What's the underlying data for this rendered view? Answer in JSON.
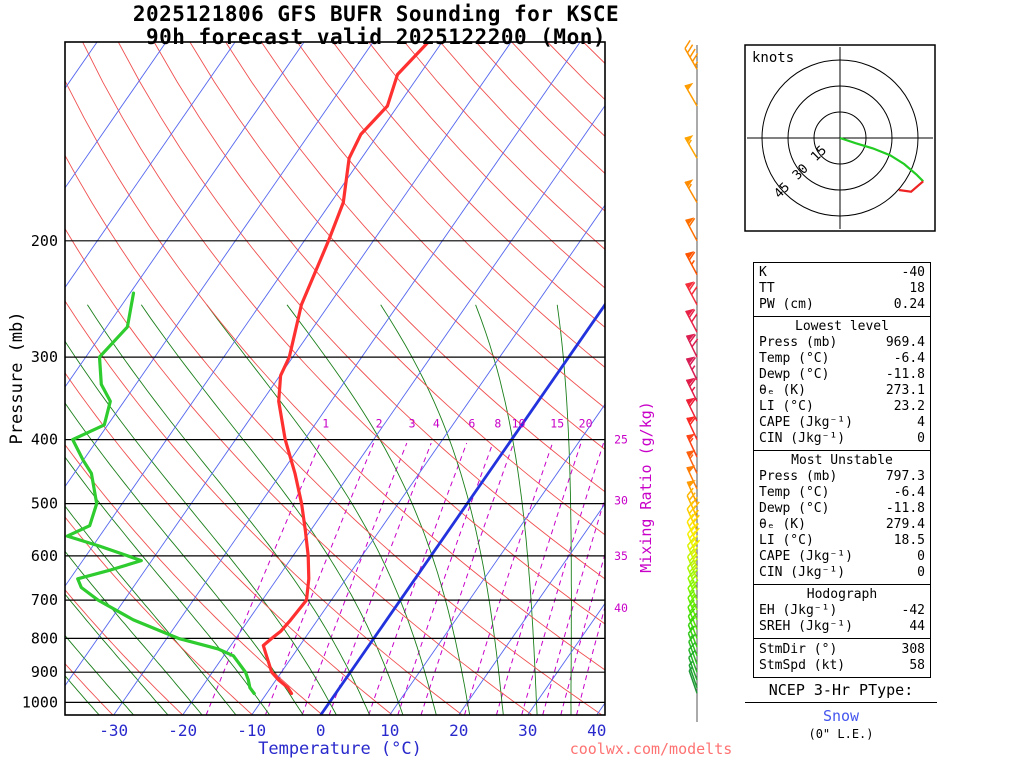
{
  "title": {
    "line1": "2025121806 GFS BUFR Sounding for KSCE",
    "line2": "90h forecast valid 2025122200 (Mon)"
  },
  "axes": {
    "pressure_label": "Pressure (mb)",
    "temp_label": "Temperature (°C)",
    "mixing_ratio_label": "Mixing Ratio (g/kg)",
    "pressure_ticks": [
      200,
      300,
      400,
      500,
      600,
      700,
      800,
      900,
      1000
    ],
    "temp_ticks": [
      -30,
      -20,
      -10,
      0,
      10,
      20,
      30,
      40
    ]
  },
  "watermark": "coolwx.com/modelts",
  "chart_data": {
    "type": "skewt_log_p_sounding",
    "station": "KSCE",
    "model_run": "2025121806 GFS BUFR",
    "forecast": "90h forecast valid 2025122200 (Mon)",
    "pressure_range": [
      100,
      1045
    ],
    "isotherms": {
      "min": -100,
      "max": 40,
      "step": 10,
      "freezing_highlight": 0
    },
    "dry_adiabats_theta_K": {
      "min": 240,
      "max": 490,
      "step": 10
    },
    "moist_adiabats_thetaw_C": {
      "min": -40,
      "max": 40,
      "step": 5
    },
    "mixing_ratio_values": [
      1,
      2,
      3,
      4,
      6,
      8,
      10,
      15,
      20,
      25,
      30,
      35,
      40
    ],
    "temperature_profile": [
      [
        969.4,
        -6.4
      ],
      [
        950,
        -7.5
      ],
      [
        925,
        -9.6
      ],
      [
        900,
        -11.4
      ],
      [
        850,
        -13.8
      ],
      [
        820,
        -15.3
      ],
      [
        800,
        -14.8
      ],
      [
        780,
        -14.2
      ],
      [
        750,
        -13.9
      ],
      [
        700,
        -13.6
      ],
      [
        650,
        -15.4
      ],
      [
        600,
        -17.8
      ],
      [
        550,
        -20.7
      ],
      [
        500,
        -24.0
      ],
      [
        450,
        -28.0
      ],
      [
        400,
        -32.8
      ],
      [
        350,
        -37.6
      ],
      [
        320,
        -39.9
      ],
      [
        300,
        -40.5
      ],
      [
        250,
        -44.0
      ],
      [
        200,
        -46.5
      ],
      [
        175,
        -48.2
      ],
      [
        150,
        -51.8
      ],
      [
        138,
        -52.5
      ],
      [
        125,
        -51.5
      ],
      [
        112,
        -53.2
      ],
      [
        100,
        -52.0
      ]
    ],
    "dewpoint_profile": [
      [
        969.4,
        -11.8
      ],
      [
        950,
        -13.0
      ],
      [
        925,
        -14.0
      ],
      [
        900,
        -15.2
      ],
      [
        850,
        -18.6
      ],
      [
        830,
        -21.5
      ],
      [
        800,
        -28.3
      ],
      [
        750,
        -36.7
      ],
      [
        700,
        -43.8
      ],
      [
        670,
        -47.5
      ],
      [
        650,
        -48.9
      ],
      [
        630,
        -45.0
      ],
      [
        610,
        -41.5
      ],
      [
        580,
        -49.0
      ],
      [
        560,
        -54.7
      ],
      [
        540,
        -52.5
      ],
      [
        500,
        -53.7
      ],
      [
        450,
        -57.5
      ],
      [
        430,
        -60.0
      ],
      [
        400,
        -63.6
      ],
      [
        380,
        -60.5
      ],
      [
        350,
        -62.0
      ],
      [
        330,
        -65.0
      ],
      [
        300,
        -68.0
      ],
      [
        270,
        -67.0
      ],
      [
        240,
        -69.5
      ]
    ],
    "wind_barbs": [
      [
        110,
        45,
        330,
        "#FF9400"
      ],
      [
        125,
        50,
        330,
        "#FF9C00"
      ],
      [
        150,
        55,
        330,
        "#FFA400"
      ],
      [
        175,
        55,
        330,
        "#FF8C00"
      ],
      [
        200,
        60,
        332,
        "#FF7000"
      ],
      [
        225,
        65,
        332,
        "#FF5400"
      ],
      [
        250,
        70,
        332,
        "#F52E3C"
      ],
      [
        275,
        70,
        332,
        "#E82348"
      ],
      [
        300,
        70,
        334,
        "#DC1E50"
      ],
      [
        325,
        65,
        334,
        "#D81E54"
      ],
      [
        350,
        65,
        334,
        "#E01C48"
      ],
      [
        375,
        60,
        334,
        "#EE2038"
      ],
      [
        400,
        60,
        335,
        "#FA2A24"
      ],
      [
        425,
        55,
        335,
        "#FF4518"
      ],
      [
        450,
        55,
        335,
        "#FF600E"
      ],
      [
        475,
        50,
        335,
        "#FF7E06"
      ],
      [
        500,
        50,
        336,
        "#FF9A00"
      ],
      [
        525,
        45,
        336,
        "#FFB400"
      ],
      [
        550,
        45,
        336,
        "#FFCE00"
      ],
      [
        575,
        40,
        336,
        "#FFE400"
      ],
      [
        600,
        40,
        337,
        "#F4F000"
      ],
      [
        625,
        35,
        337,
        "#DCF200"
      ],
      [
        650,
        35,
        337,
        "#C2F400"
      ],
      [
        675,
        30,
        337,
        "#AAF600"
      ],
      [
        700,
        30,
        338,
        "#92F800"
      ],
      [
        725,
        25,
        338,
        "#7CF400"
      ],
      [
        750,
        25,
        338,
        "#66EC00"
      ],
      [
        775,
        20,
        338,
        "#52E400"
      ],
      [
        800,
        20,
        339,
        "#44DC06"
      ],
      [
        825,
        15,
        339,
        "#3AD210"
      ],
      [
        850,
        15,
        339,
        "#32C81A"
      ],
      [
        875,
        10,
        340,
        "#2CBE22"
      ],
      [
        900,
        10,
        340,
        "#27B428"
      ],
      [
        925,
        10,
        340,
        "#23AA2E"
      ],
      [
        950,
        5,
        341,
        "#20A032"
      ],
      [
        969,
        5,
        341,
        "#1E9636"
      ]
    ],
    "colors": {
      "isotherm": "#5566EE",
      "freezing": "#2233DD",
      "dry_adiabat": "#F05050",
      "moist_adiabat": "#1B7F1B",
      "mixing_ratio": "#C800C8",
      "temperature": "#FF3030",
      "dewpoint": "#2ECC2E",
      "pressure_line": "#000000",
      "temp_axis_text": "#2929CC"
    }
  },
  "hodograph": {
    "label": "knots",
    "ring_radii_kt": [
      15,
      30,
      45
    ],
    "trace_green_uv_kt": [
      [
        0,
        0
      ],
      [
        9,
        -3
      ],
      [
        19,
        -6
      ],
      [
        29,
        -10
      ],
      [
        37,
        -15
      ],
      [
        44,
        -21
      ],
      [
        48,
        -25
      ]
    ],
    "trace_red_uv_kt": [
      [
        48,
        -25
      ],
      [
        41,
        -31
      ],
      [
        34,
        -30
      ]
    ],
    "colors": {
      "low_level": "#22CC22",
      "high_level": "#EE2222"
    }
  },
  "stats": {
    "indices": {
      "rows": [
        [
          "K",
          "-40"
        ],
        [
          "TT",
          "18"
        ],
        [
          "PW (cm)",
          "0.24"
        ]
      ]
    },
    "lowest": {
      "title": "Lowest level",
      "rows": [
        [
          "Press (mb)",
          "969.4"
        ],
        [
          "Temp (°C)",
          "-6.4"
        ],
        [
          "Dewp (°C)",
          "-11.8"
        ],
        [
          "θₑ (K)",
          "273.1"
        ],
        [
          "LI (°C)",
          "23.2"
        ],
        [
          "CAPE (Jkg⁻¹)",
          "4"
        ],
        [
          "CIN (Jkg⁻¹)",
          "0"
        ]
      ]
    },
    "most_unstable": {
      "title": "Most Unstable",
      "rows": [
        [
          "Press (mb)",
          "797.3"
        ],
        [
          "Temp (°C)",
          "-6.4"
        ],
        [
          "Dewp (°C)",
          "-11.8"
        ],
        [
          "θₑ (K)",
          "279.4"
        ],
        [
          "LI (°C)",
          "18.5"
        ],
        [
          "CAPE (Jkg⁻¹)",
          "0"
        ],
        [
          "CIN (Jkg⁻¹)",
          "0"
        ]
      ]
    },
    "hodo": {
      "title": "Hodograph",
      "rows_a": [
        [
          "EH (Jkg⁻¹)",
          "-42"
        ],
        [
          "SREH (Jkg⁻¹)",
          "44"
        ]
      ],
      "rows_b": [
        [
          "StmDir (°)",
          "308"
        ],
        [
          "StmSpd (kt)",
          "58"
        ]
      ]
    }
  },
  "ptype": {
    "heading": "NCEP 3-Hr PType:",
    "value": "Snow",
    "extra": "(0\" L.E.)",
    "value_color": "#4455EE"
  }
}
